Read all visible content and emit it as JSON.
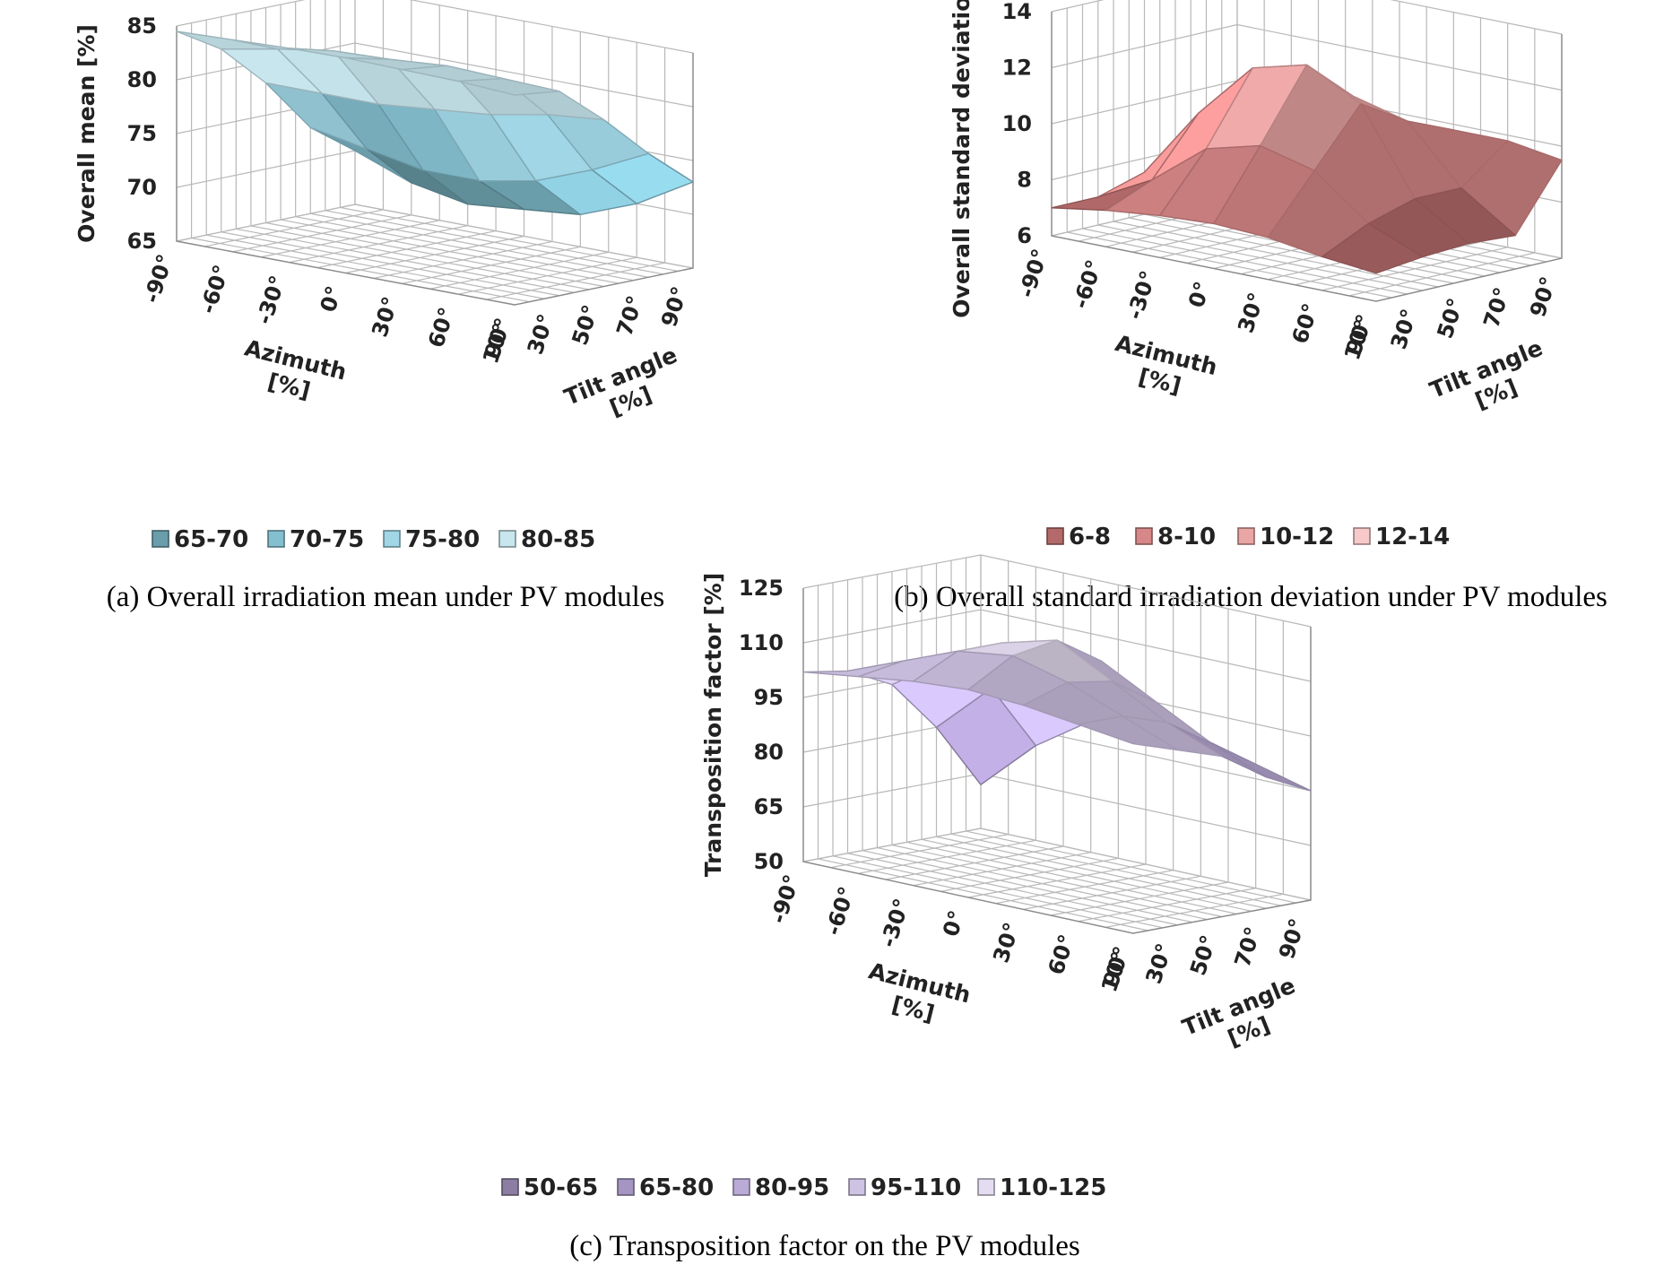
{
  "chart_data": [
    {
      "id": "a",
      "type": "surface",
      "zlabel": "Overall mean  [%]",
      "xlabel_line1": "Azimuth",
      "xlabel_line2": "[%]",
      "ylabel_line1": "Tilt angle",
      "ylabel_line2": "[%]",
      "x_ticks": [
        "-90°",
        "-60°",
        "-30°",
        "0°",
        "30°",
        "60°",
        "90°"
      ],
      "y_ticks": [
        "10°",
        "30°",
        "50°",
        "70°",
        "90°"
      ],
      "z_ticks": [
        "65",
        "70",
        "75",
        "80",
        "85"
      ],
      "zlim": [
        65,
        85
      ],
      "azimuth": [
        -90,
        -60,
        -30,
        0,
        30,
        60,
        90
      ],
      "tilt": [
        10,
        30,
        50,
        70,
        90
      ],
      "values": [
        [
          84.5,
          84.0,
          80.5,
          76.5,
          73.0
        ],
        [
          84.8,
          84.2,
          80.0,
          74.0,
          70.0
        ],
        [
          84.9,
          84.4,
          79.0,
          72.0,
          68.0
        ],
        [
          85.0,
          84.0,
          78.5,
          71.0,
          67.5
        ],
        [
          84.9,
          83.8,
          78.0,
          71.0,
          67.0
        ],
        [
          84.7,
          83.0,
          78.0,
          72.0,
          68.0
        ],
        [
          84.5,
          82.0,
          78.0,
          73.0,
          70.0
        ]
      ],
      "legend": [
        {
          "label": "65-70",
          "color": "#6a9eaa"
        },
        {
          "label": "70-75",
          "color": "#84bfd0"
        },
        {
          "label": "75-80",
          "color": "#a0d6e6"
        },
        {
          "label": "80-85",
          "color": "#c8e6ee"
        }
      ],
      "caption": "(a) Overall irradiation mean under PV modules"
    },
    {
      "id": "b",
      "type": "surface",
      "zlabel": "Overall  standard  deviation  [%]",
      "xlabel_line1": "Azimuth",
      "xlabel_line2": "[%]",
      "ylabel_line1": "Tilt angle",
      "ylabel_line2": "[%]",
      "x_ticks": [
        "-90°",
        "-60°",
        "-30°",
        "0°",
        "30°",
        "60°",
        "90°"
      ],
      "y_ticks": [
        "10°",
        "30°",
        "50°",
        "70°",
        "90°"
      ],
      "z_ticks": [
        "6",
        "8",
        "10",
        "12",
        "14"
      ],
      "zlim": [
        6,
        14
      ],
      "azimuth": [
        -90,
        -60,
        -30,
        0,
        30,
        60,
        90
      ],
      "tilt": [
        10,
        30,
        50,
        70,
        90
      ],
      "values": [
        [
          7.0,
          7.2,
          7.3,
          7.2,
          9.5
        ],
        [
          7.2,
          8.0,
          8.5,
          8.5,
          9.8
        ],
        [
          7.5,
          9.5,
          11.5,
          10.5,
          9.8
        ],
        [
          7.6,
          10.0,
          12.5,
          11.0,
          9.0
        ],
        [
          7.5,
          9.5,
          12.0,
          10.5,
          8.0
        ],
        [
          7.3,
          8.0,
          10.0,
          8.5,
          7.0
        ],
        [
          7.0,
          7.0,
          7.5,
          6.5,
          6.5
        ]
      ],
      "legend": [
        {
          "label": "6-8",
          "color": "#b46a6a"
        },
        {
          "label": "8-10",
          "color": "#d78787"
        },
        {
          "label": "10-12",
          "color": "#eaa5a5"
        },
        {
          "label": "12-14",
          "color": "#f7c9c9"
        }
      ],
      "caption": "(b) Overall standard irradiation deviation under PV modules"
    },
    {
      "id": "c",
      "type": "surface",
      "zlabel": "Transposition  factor  [%]",
      "xlabel_line1": "Azimuth",
      "xlabel_line2": "[%]",
      "ylabel_line1": "Tilt angle",
      "ylabel_line2": "[%]",
      "x_ticks": [
        "-90°",
        "-60°",
        "-30°",
        "0°",
        "30°",
        "60°",
        "90°"
      ],
      "y_ticks": [
        "10°",
        "30°",
        "50°",
        "70°",
        "90°"
      ],
      "z_ticks": [
        "50",
        "65",
        "80",
        "95",
        "110",
        "125"
      ],
      "zlim": [
        50,
        125
      ],
      "azimuth": [
        -90,
        -60,
        -30,
        0,
        30,
        60,
        90
      ],
      "tilt": [
        10,
        30,
        50,
        70,
        90
      ],
      "values": [
        [
          102,
          98,
          94,
          86,
          80
        ],
        [
          104,
          104,
          100,
          92,
          84
        ],
        [
          106,
          110,
          108,
          100,
          88
        ],
        [
          107,
          114,
          116,
          108,
          90
        ],
        [
          106,
          112,
          112,
          104,
          86
        ],
        [
          104,
          106,
          104,
          94,
          76
        ],
        [
          102,
          100,
          94,
          80,
          62
        ]
      ],
      "legend": [
        {
          "label": "50-65",
          "color": "#8c7ea2"
        },
        {
          "label": "65-80",
          "color": "#a595c3"
        },
        {
          "label": "80-95",
          "color": "#b9aad6"
        },
        {
          "label": "95-110",
          "color": "#cfc3e4"
        },
        {
          "label": "110-125",
          "color": "#e4dcf0"
        }
      ],
      "caption": "(c) Transposition factor on the PV modules"
    }
  ]
}
